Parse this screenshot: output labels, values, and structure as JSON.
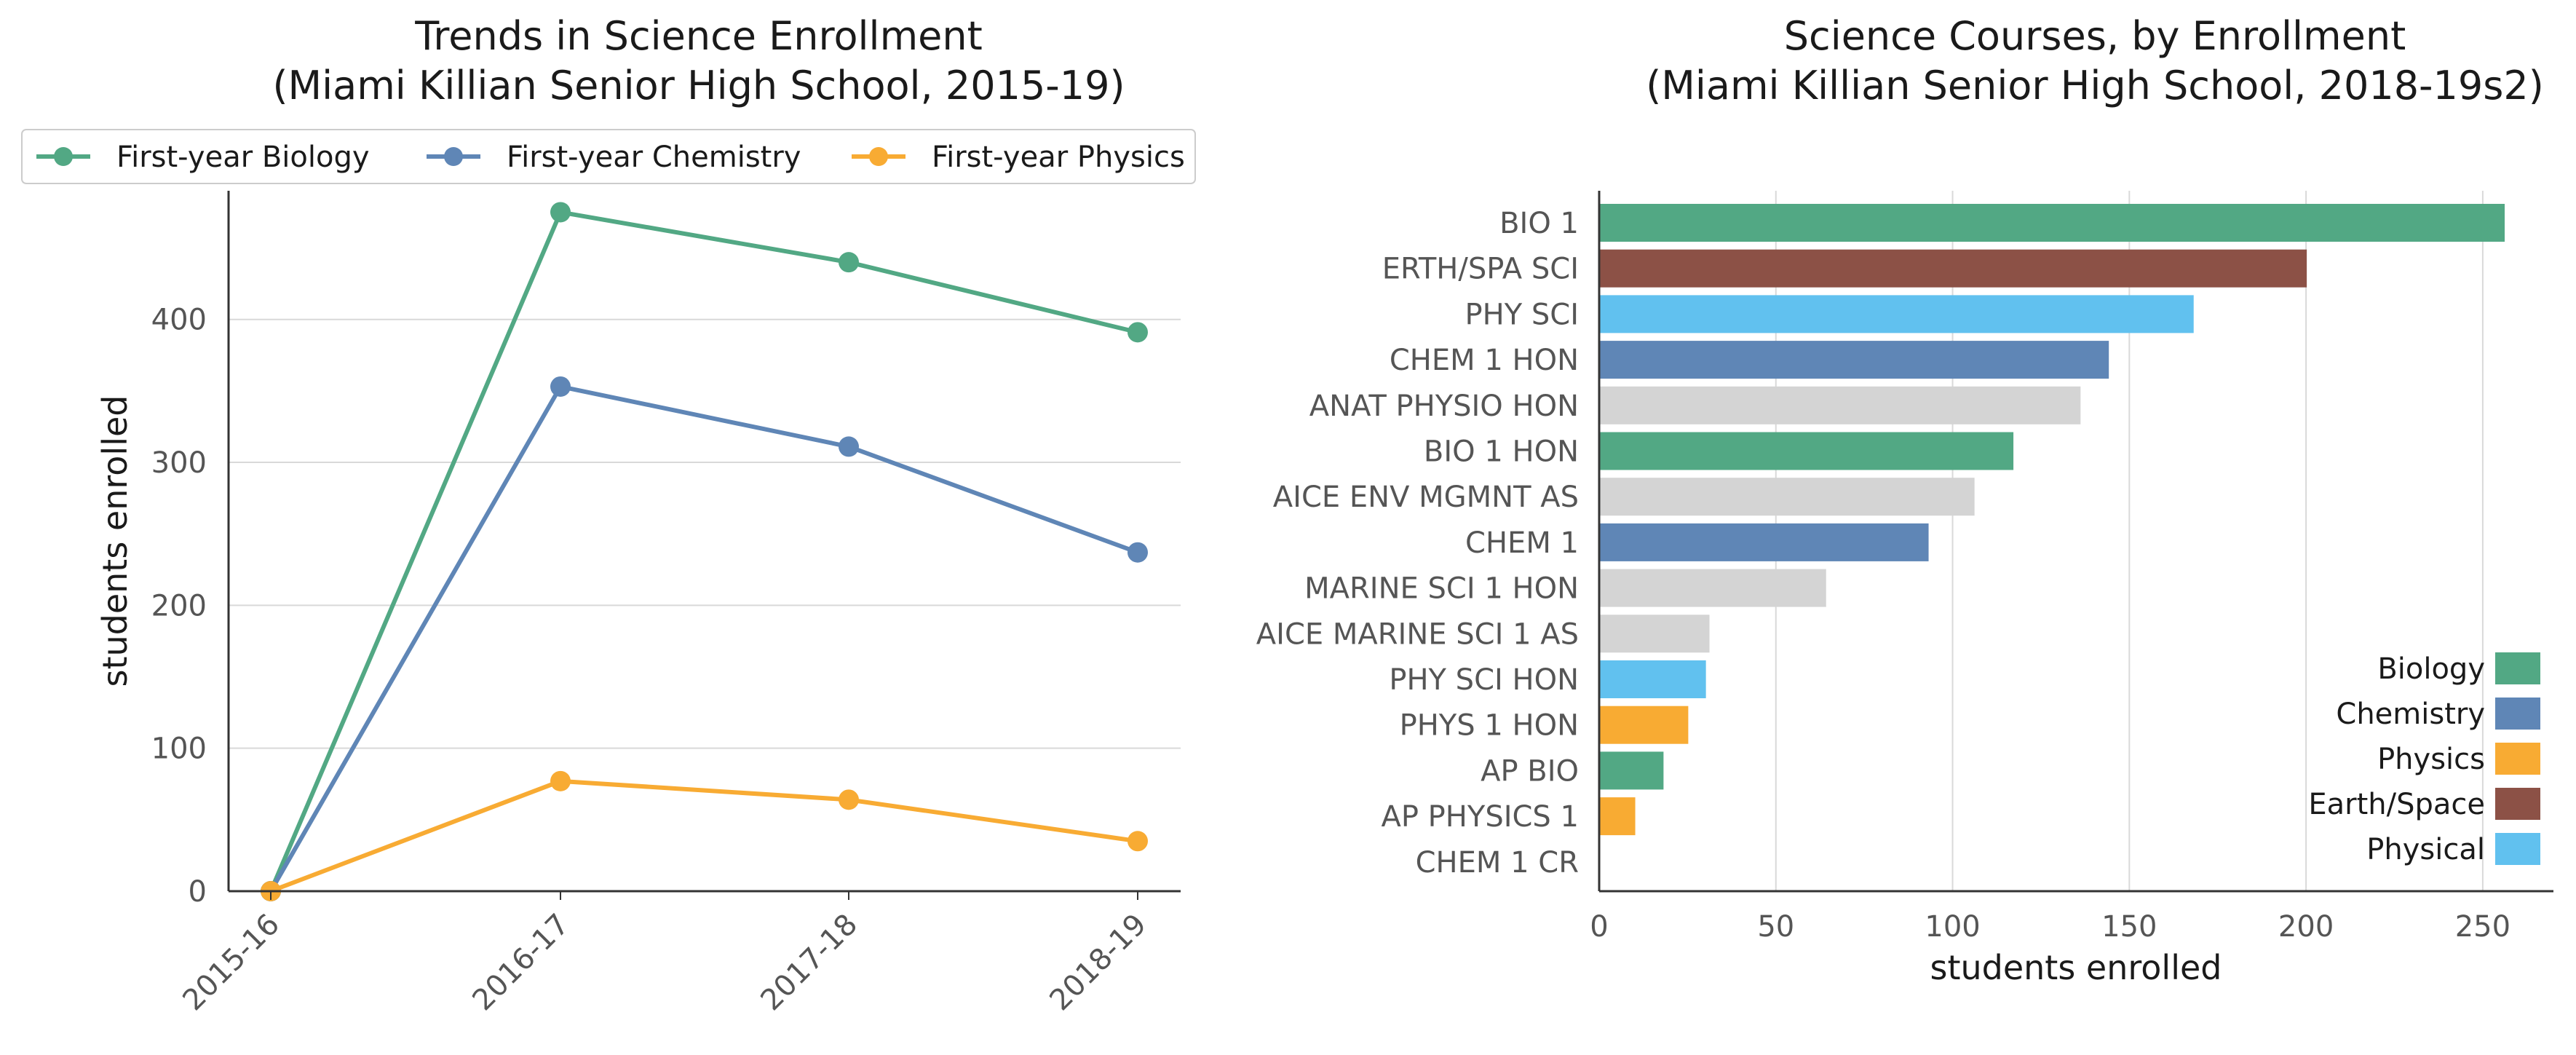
{
  "chart_data": [
    {
      "type": "line",
      "title": "Trends in Science Enrollment",
      "subtitle": "(Miami Killian Senior High School, 2015-19)",
      "ylabel": "students enrolled",
      "xlabel": "",
      "x": [
        "2015-16",
        "2016-17",
        "2017-18",
        "2018-19"
      ],
      "ylim": [
        0,
        490
      ],
      "yticks": [
        0,
        100,
        200,
        300,
        400
      ],
      "grid": "horizontal",
      "legend_position": "top",
      "series": [
        {
          "name": "First-year Biology",
          "color": "#52a884",
          "values": [
            0,
            475,
            440,
            391
          ]
        },
        {
          "name": "First-year Chemistry",
          "color": "#5f86b6",
          "values": [
            0,
            353,
            311,
            237
          ]
        },
        {
          "name": "First-year Physics",
          "color": "#f8ab33",
          "values": [
            0,
            77,
            64,
            35
          ]
        }
      ]
    },
    {
      "type": "bar",
      "orientation": "horizontal",
      "title": "Science Courses, by Enrollment",
      "subtitle": "(Miami Killian Senior High School, 2018-19s2)",
      "xlabel": "students enrolled",
      "ylabel": "",
      "xlim": [
        0,
        270
      ],
      "xticks": [
        0,
        50,
        100,
        150,
        200,
        250
      ],
      "grid": "vertical",
      "legend_position": "bottom-right",
      "legend": [
        {
          "name": "Biology",
          "color": "#52a884"
        },
        {
          "name": "Chemistry",
          "color": "#5f86b6"
        },
        {
          "name": "Physics",
          "color": "#f8ab33"
        },
        {
          "name": "Earth/Space",
          "color": "#8c5146"
        },
        {
          "name": "Physical",
          "color": "#61c1ef"
        }
      ],
      "other_color": "#d4d4d4",
      "bars": [
        {
          "label": "BIO 1",
          "value": 256,
          "color": "#52a884"
        },
        {
          "label": "ERTH/SPA SCI",
          "value": 200,
          "color": "#8c5146"
        },
        {
          "label": "PHY SCI",
          "value": 168,
          "color": "#61c1ef"
        },
        {
          "label": "CHEM 1 HON",
          "value": 144,
          "color": "#5f86b6"
        },
        {
          "label": "ANAT PHYSIO HON",
          "value": 136,
          "color": "#d4d4d4"
        },
        {
          "label": "BIO 1 HON",
          "value": 117,
          "color": "#52a884"
        },
        {
          "label": "AICE ENV MGMNT AS",
          "value": 106,
          "color": "#d4d4d4"
        },
        {
          "label": "CHEM 1",
          "value": 93,
          "color": "#5f86b6"
        },
        {
          "label": "MARINE SCI 1 HON",
          "value": 64,
          "color": "#d4d4d4"
        },
        {
          "label": "AICE MARINE SCI 1 AS",
          "value": 31,
          "color": "#d4d4d4"
        },
        {
          "label": "PHY SCI HON",
          "value": 30,
          "color": "#61c1ef"
        },
        {
          "label": "PHYS 1 HON",
          "value": 25,
          "color": "#f8ab33"
        },
        {
          "label": "AP BIO",
          "value": 18,
          "color": "#52a884"
        },
        {
          "label": "AP PHYSICS 1",
          "value": 10,
          "color": "#f8ab33"
        },
        {
          "label": "CHEM 1 CR",
          "value": 0,
          "color": "#5f86b6"
        }
      ]
    }
  ]
}
